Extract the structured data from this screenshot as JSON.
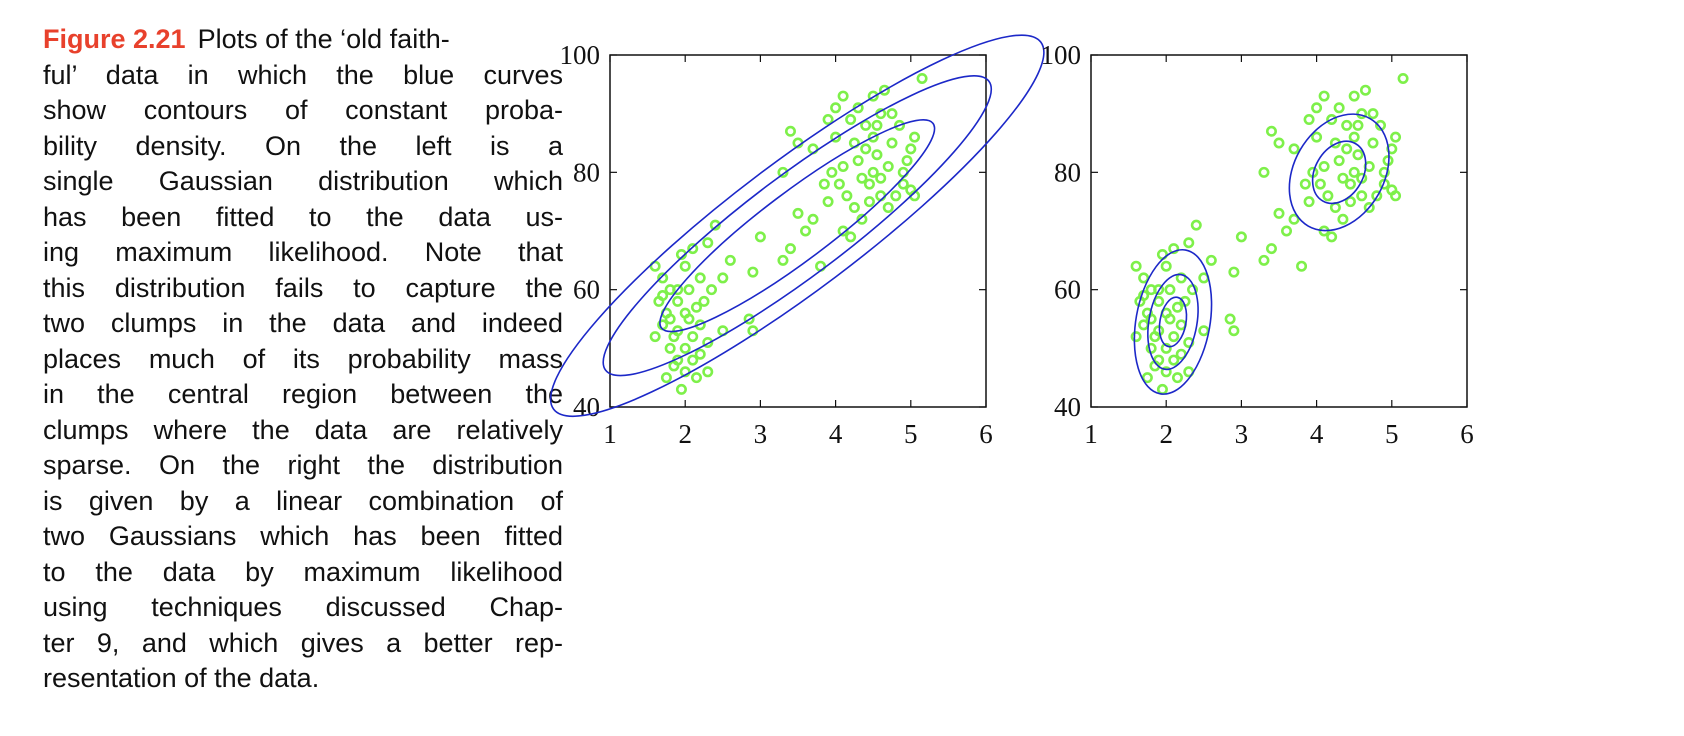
{
  "caption": {
    "label": "Figure 2.21",
    "lines": [
      "Plots of the ‘old faith-",
      "ful’ data in which the blue curves",
      "show contours of constant proba-",
      "bility density.   On the left is a",
      "single Gaussian distribution which",
      "has been fitted to the data us-",
      "ing maximum likelihood.  Note that",
      "this distribution fails to capture the",
      "two clumps in the data and indeed",
      "places much of its probability mass",
      "in the central region between the",
      "clumps where the data are relatively",
      "sparse.  On the right the distribution",
      "is given by a linear combination of",
      "two Gaussians which has been fitted",
      "to the data by maximum likelihood",
      "using techniques discussed Chap-",
      "ter 9, and which gives a better rep-",
      "resentation of the data."
    ]
  },
  "colors": {
    "points": "#7ef04a",
    "contours": "#1c28c8",
    "axes": "#111111",
    "caption_label": "#e8412c"
  },
  "chart_data": [
    {
      "type": "scatter",
      "title": "",
      "xlabel": "",
      "ylabel": "",
      "xlim": [
        1,
        6
      ],
      "ylim": [
        40,
        100
      ],
      "xticks": [
        1,
        2,
        3,
        4,
        5,
        6
      ],
      "yticks": [
        40,
        60,
        80,
        100
      ],
      "grid": false,
      "points": [
        [
          1.6,
          64
        ],
        [
          1.7,
          62
        ],
        [
          1.8,
          60
        ],
        [
          1.65,
          58
        ],
        [
          1.75,
          56
        ],
        [
          1.7,
          54
        ],
        [
          1.85,
          52
        ],
        [
          1.6,
          52
        ],
        [
          1.8,
          50
        ],
        [
          1.9,
          48
        ],
        [
          2.0,
          46
        ],
        [
          1.85,
          47
        ],
        [
          1.75,
          45
        ],
        [
          1.95,
          43
        ],
        [
          2.1,
          48
        ],
        [
          2.0,
          50
        ],
        [
          2.1,
          52
        ],
        [
          2.2,
          54
        ],
        [
          2.0,
          56
        ],
        [
          1.9,
          58
        ],
        [
          2.05,
          60
        ],
        [
          2.2,
          62
        ],
        [
          2.0,
          64
        ],
        [
          1.95,
          66
        ],
        [
          2.1,
          67
        ],
        [
          2.3,
          68
        ],
        [
          2.4,
          71
        ],
        [
          2.15,
          57
        ],
        [
          1.8,
          55
        ],
        [
          1.9,
          53
        ],
        [
          2.05,
          55
        ],
        [
          2.25,
          58
        ],
        [
          2.35,
          60
        ],
        [
          2.5,
          62
        ],
        [
          2.6,
          65
        ],
        [
          2.5,
          53
        ],
        [
          2.3,
          51
        ],
        [
          2.2,
          49
        ],
        [
          2.3,
          46
        ],
        [
          2.15,
          45
        ],
        [
          1.9,
          60
        ],
        [
          1.7,
          59
        ],
        [
          2.85,
          55
        ],
        [
          2.9,
          53
        ],
        [
          2.9,
          63
        ],
        [
          3.0,
          69
        ],
        [
          3.3,
          65
        ],
        [
          3.4,
          67
        ],
        [
          3.6,
          70
        ],
        [
          3.7,
          72
        ],
        [
          3.9,
          75
        ],
        [
          3.8,
          64
        ],
        [
          3.5,
          73
        ],
        [
          3.3,
          80
        ],
        [
          3.4,
          87
        ],
        [
          3.5,
          85
        ],
        [
          3.7,
          84
        ],
        [
          3.9,
          89
        ],
        [
          4.0,
          91
        ],
        [
          4.1,
          93
        ],
        [
          4.0,
          86
        ],
        [
          3.95,
          80
        ],
        [
          4.05,
          78
        ],
        [
          4.15,
          76
        ],
        [
          4.25,
          74
        ],
        [
          4.35,
          72
        ],
        [
          4.1,
          70
        ],
        [
          4.2,
          69
        ],
        [
          4.3,
          82
        ],
        [
          4.4,
          84
        ],
        [
          4.5,
          86
        ],
        [
          4.55,
          88
        ],
        [
          4.6,
          90
        ],
        [
          4.5,
          80
        ],
        [
          4.45,
          78
        ],
        [
          4.6,
          76
        ],
        [
          4.7,
          74
        ],
        [
          4.8,
          76
        ],
        [
          4.9,
          80
        ],
        [
          4.95,
          82
        ],
        [
          5.0,
          84
        ],
        [
          5.05,
          86
        ],
        [
          4.85,
          88
        ],
        [
          4.75,
          90
        ],
        [
          4.9,
          78
        ],
        [
          5.0,
          77
        ],
        [
          4.65,
          94
        ],
        [
          4.5,
          93
        ],
        [
          4.3,
          91
        ],
        [
          4.2,
          89
        ],
        [
          5.15,
          96
        ],
        [
          5.05,
          76
        ],
        [
          4.7,
          81
        ],
        [
          4.55,
          83
        ],
        [
          4.35,
          79
        ],
        [
          4.6,
          79
        ],
        [
          4.25,
          85
        ],
        [
          4.1,
          81
        ],
        [
          4.45,
          75
        ],
        [
          3.85,
          78
        ],
        [
          4.75,
          85
        ],
        [
          4.4,
          88
        ]
      ],
      "contours": [
        {
          "cx": 3.49,
          "cy": 70.9,
          "ang": 37,
          "a": 170,
          "b": 34
        },
        {
          "cx": 3.49,
          "cy": 70.9,
          "ang": 37,
          "a": 240,
          "b": 50
        },
        {
          "cx": 3.49,
          "cy": 70.9,
          "ang": 37,
          "a": 305,
          "b": 64
        }
      ]
    },
    {
      "type": "scatter",
      "title": "",
      "xlabel": "",
      "ylabel": "",
      "xlim": [
        1,
        6
      ],
      "ylim": [
        40,
        100
      ],
      "xticks": [
        1,
        2,
        3,
        4,
        5,
        6
      ],
      "yticks": [
        40,
        60,
        80,
        100
      ],
      "grid": false,
      "points": [
        [
          1.6,
          64
        ],
        [
          1.7,
          62
        ],
        [
          1.8,
          60
        ],
        [
          1.65,
          58
        ],
        [
          1.75,
          56
        ],
        [
          1.7,
          54
        ],
        [
          1.85,
          52
        ],
        [
          1.6,
          52
        ],
        [
          1.8,
          50
        ],
        [
          1.9,
          48
        ],
        [
          2.0,
          46
        ],
        [
          1.85,
          47
        ],
        [
          1.75,
          45
        ],
        [
          1.95,
          43
        ],
        [
          2.1,
          48
        ],
        [
          2.0,
          50
        ],
        [
          2.1,
          52
        ],
        [
          2.2,
          54
        ],
        [
          2.0,
          56
        ],
        [
          1.9,
          58
        ],
        [
          2.05,
          60
        ],
        [
          2.2,
          62
        ],
        [
          2.0,
          64
        ],
        [
          1.95,
          66
        ],
        [
          2.1,
          67
        ],
        [
          2.3,
          68
        ],
        [
          2.4,
          71
        ],
        [
          2.15,
          57
        ],
        [
          1.8,
          55
        ],
        [
          1.9,
          53
        ],
        [
          2.05,
          55
        ],
        [
          2.25,
          58
        ],
        [
          2.35,
          60
        ],
        [
          2.5,
          62
        ],
        [
          2.6,
          65
        ],
        [
          2.5,
          53
        ],
        [
          2.3,
          51
        ],
        [
          2.2,
          49
        ],
        [
          2.3,
          46
        ],
        [
          2.15,
          45
        ],
        [
          1.9,
          60
        ],
        [
          1.7,
          59
        ],
        [
          2.85,
          55
        ],
        [
          2.9,
          53
        ],
        [
          2.9,
          63
        ],
        [
          3.0,
          69
        ],
        [
          3.3,
          65
        ],
        [
          3.4,
          67
        ],
        [
          3.6,
          70
        ],
        [
          3.7,
          72
        ],
        [
          3.9,
          75
        ],
        [
          3.8,
          64
        ],
        [
          3.5,
          73
        ],
        [
          3.3,
          80
        ],
        [
          3.4,
          87
        ],
        [
          3.5,
          85
        ],
        [
          3.7,
          84
        ],
        [
          3.9,
          89
        ],
        [
          4.0,
          91
        ],
        [
          4.1,
          93
        ],
        [
          4.0,
          86
        ],
        [
          3.95,
          80
        ],
        [
          4.05,
          78
        ],
        [
          4.15,
          76
        ],
        [
          4.25,
          74
        ],
        [
          4.35,
          72
        ],
        [
          4.1,
          70
        ],
        [
          4.2,
          69
        ],
        [
          4.3,
          82
        ],
        [
          4.4,
          84
        ],
        [
          4.5,
          86
        ],
        [
          4.55,
          88
        ],
        [
          4.6,
          90
        ],
        [
          4.5,
          80
        ],
        [
          4.45,
          78
        ],
        [
          4.6,
          76
        ],
        [
          4.7,
          74
        ],
        [
          4.8,
          76
        ],
        [
          4.9,
          80
        ],
        [
          4.95,
          82
        ],
        [
          5.0,
          84
        ],
        [
          5.05,
          86
        ],
        [
          4.85,
          88
        ],
        [
          4.75,
          90
        ],
        [
          4.9,
          78
        ],
        [
          5.0,
          77
        ],
        [
          4.65,
          94
        ],
        [
          4.5,
          93
        ],
        [
          4.3,
          91
        ],
        [
          4.2,
          89
        ],
        [
          5.15,
          96
        ],
        [
          5.05,
          76
        ],
        [
          4.7,
          81
        ],
        [
          4.55,
          83
        ],
        [
          4.35,
          79
        ],
        [
          4.6,
          79
        ],
        [
          4.25,
          85
        ],
        [
          4.1,
          81
        ],
        [
          4.45,
          75
        ],
        [
          3.85,
          78
        ],
        [
          4.75,
          85
        ],
        [
          4.4,
          88
        ]
      ],
      "contours": [
        {
          "cx": 2.09,
          "cy": 54.5,
          "ang": 80,
          "a": 25,
          "b": 13
        },
        {
          "cx": 2.09,
          "cy": 54.5,
          "ang": 80,
          "a": 48,
          "b": 24
        },
        {
          "cx": 2.09,
          "cy": 54.5,
          "ang": 80,
          "a": 73,
          "b": 37
        },
        {
          "cx": 4.3,
          "cy": 80.0,
          "ang": 60,
          "a": 33,
          "b": 24
        },
        {
          "cx": 4.3,
          "cy": 80.0,
          "ang": 60,
          "a": 62,
          "b": 45
        }
      ]
    }
  ]
}
